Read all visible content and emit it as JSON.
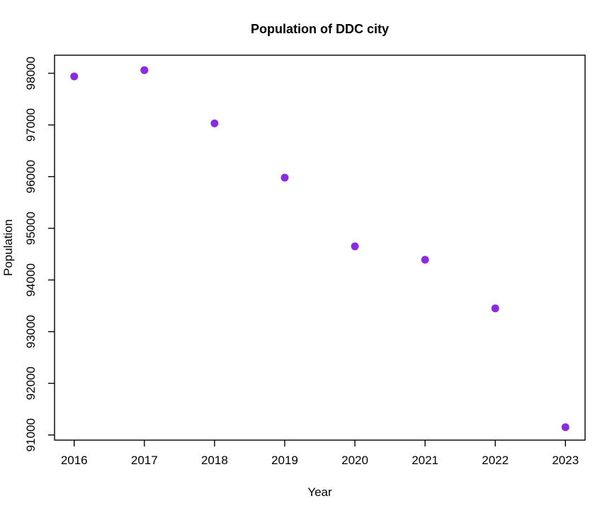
{
  "window": {
    "background": "#ffffff"
  },
  "chart_data": {
    "type": "scatter",
    "title": "Population of DDC city",
    "xlabel": "Year",
    "ylabel": "Population",
    "x": [
      2016,
      2017,
      2018,
      2019,
      2020,
      2021,
      2022,
      2023
    ],
    "y": [
      97940,
      98060,
      97030,
      95980,
      94650,
      94390,
      93450,
      91150
    ],
    "x_ticks": [
      2016,
      2017,
      2018,
      2019,
      2020,
      2021,
      2022,
      2023
    ],
    "y_ticks": [
      91000,
      92000,
      93000,
      94000,
      95000,
      96000,
      97000,
      98000
    ],
    "xlim": [
      2015.72,
      2023.28
    ],
    "ylim": [
      90900,
      98350
    ],
    "grid": false,
    "legend_position": "none",
    "point_color": "#8A2BE2",
    "axis_color": "#000000",
    "plot_background": "#ffffff",
    "marker": "filled-circle",
    "marker_radius": 5.5
  }
}
